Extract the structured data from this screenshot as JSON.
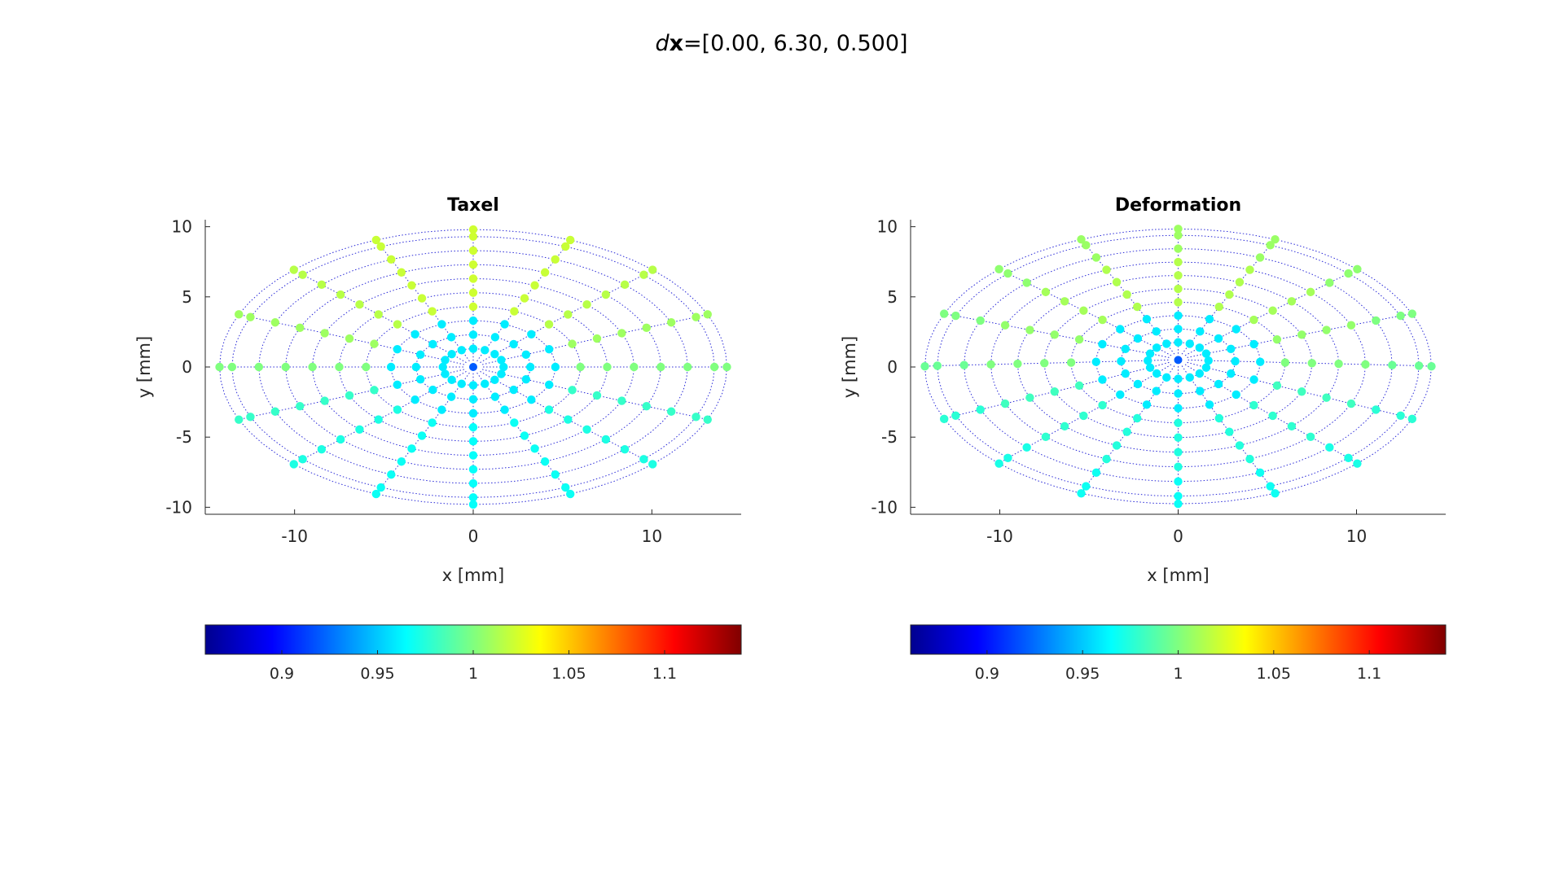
{
  "figure": {
    "suptitle": {
      "prefix": "d",
      "bold": "x",
      "rest": "=[0.00, 6.30, 0.500]"
    }
  },
  "chart_data": [
    {
      "type": "scatter",
      "title": "Taxel",
      "xlabel": "x [mm]",
      "ylabel": "y [mm]",
      "xlim": [
        -15,
        15
      ],
      "ylim": [
        -10.5,
        10.5
      ],
      "xticks": [
        -10,
        0,
        10
      ],
      "xtick_labels": [
        "-10",
        "0",
        "10"
      ],
      "yticks": [
        10,
        5,
        0,
        -5,
        -10
      ],
      "ytick_labels": [
        "10",
        "5",
        "0",
        "-5",
        "-10"
      ],
      "grid": "polar mesh, 16 spokes, 10 rings, dotted blue",
      "center_offset_y": 0,
      "ring_semi_axes_mm": {
        "a": [
          0.55,
          1.7,
          3.2,
          4.6,
          6.0,
          7.5,
          9.0,
          10.5,
          12.0,
          13.5,
          14.2
        ],
        "b": [
          0.45,
          1.3,
          2.3,
          3.3,
          4.3,
          5.3,
          6.3,
          7.3,
          8.3,
          9.3,
          9.8
        ]
      },
      "colorbar": {
        "cmap": "jet",
        "range": [
          0.86,
          1.14
        ],
        "ticks": [
          0.9,
          0.95,
          1,
          1.05,
          1.1
        ],
        "tick_labels": [
          "0.9",
          "0.95",
          "1",
          "1.05",
          "1.1"
        ]
      }
    },
    {
      "type": "scatter",
      "title": "Deformation",
      "xlabel": "x [mm]",
      "ylabel": "y [mm]",
      "xlim": [
        -15,
        15
      ],
      "ylim": [
        -10.5,
        10.5
      ],
      "xticks": [
        -10,
        0,
        10
      ],
      "xtick_labels": [
        "-10",
        "0",
        "10"
      ],
      "yticks": [
        10,
        5,
        0,
        -5,
        -10
      ],
      "ytick_labels": [
        "10",
        "5",
        "0",
        "-5",
        "-10"
      ],
      "grid": "polar mesh, 16 spokes, 10 rings, dotted blue",
      "center_offset_y": 0.5,
      "ring_semi_axes_mm": {
        "a": [
          0.55,
          1.7,
          3.2,
          4.6,
          6.0,
          7.5,
          9.0,
          10.5,
          12.0,
          13.5,
          14.2
        ],
        "b": [
          0.45,
          1.3,
          2.3,
          3.3,
          4.3,
          5.3,
          6.3,
          7.3,
          8.3,
          9.3,
          9.8
        ]
      },
      "colorbar": {
        "cmap": "jet",
        "range": [
          0.86,
          1.14
        ],
        "ticks": [
          0.9,
          0.95,
          1,
          1.05,
          1.1
        ],
        "tick_labels": [
          "0.9",
          "0.95",
          "1",
          "1.05",
          "1.1"
        ]
      }
    }
  ]
}
